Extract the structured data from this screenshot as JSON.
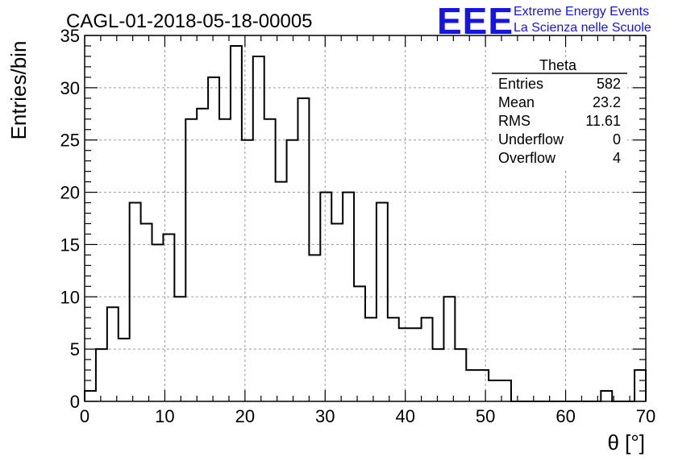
{
  "chart_data": {
    "type": "bar",
    "title": "CAGL-01-2018-05-18-00005",
    "xlabel": "θ [°]",
    "ylabel": "Entries/bin",
    "xlim": [
      0,
      70
    ],
    "ylim": [
      0,
      35
    ],
    "grid": true,
    "bin_width": 1.4,
    "x_ticks": [
      0,
      10,
      20,
      30,
      40,
      50,
      60,
      70
    ],
    "y_ticks": [
      0,
      5,
      10,
      15,
      20,
      25,
      30,
      35
    ],
    "values": [
      1,
      5,
      9,
      6,
      19,
      17,
      15,
      16,
      10,
      27,
      28,
      31,
      27,
      34,
      25,
      33,
      27,
      21,
      25,
      29,
      14,
      20,
      17,
      20,
      11,
      8,
      19,
      8,
      7,
      7,
      8,
      5,
      10,
      5,
      3,
      3,
      2,
      2,
      0,
      0,
      0,
      0,
      0,
      0,
      0,
      0,
      1,
      0,
      0,
      3
    ]
  },
  "stats_box": {
    "title": "Theta",
    "rows": [
      {
        "label": "Entries",
        "value": "582"
      },
      {
        "label": "Mean",
        "value": "23.2"
      },
      {
        "label": "RMS",
        "value": "11.61"
      },
      {
        "label": "Underflow",
        "value": "0"
      },
      {
        "label": "Overflow",
        "value": "4"
      }
    ]
  },
  "logo": {
    "mark": "EEE",
    "line1": "Extreme Energy Events",
    "line2": "La Scienza nelle Scuole"
  },
  "colors": {
    "line": "#000000",
    "grid": "#9a9a9a",
    "logo": "#1414e6"
  }
}
